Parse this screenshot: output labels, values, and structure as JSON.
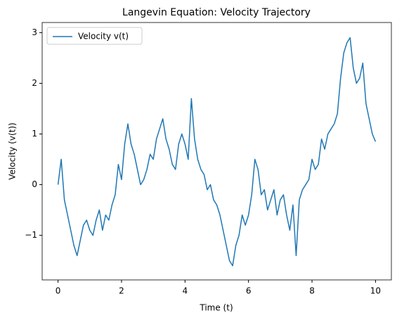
{
  "chart_data": {
    "type": "line",
    "title": "Langevin Equation: Velocity Trajectory",
    "xlabel": "Time (t)",
    "ylabel": "Velocity (v(t))",
    "x": [
      0,
      0.1,
      0.2,
      0.3,
      0.4,
      0.5,
      0.6,
      0.7,
      0.8,
      0.9,
      1,
      1.1,
      1.2,
      1.3,
      1.4,
      1.5,
      1.6,
      1.7,
      1.8,
      1.9,
      2,
      2.1,
      2.2,
      2.3,
      2.4,
      2.5,
      2.6,
      2.7,
      2.8,
      2.9,
      3,
      3.1,
      3.2,
      3.3,
      3.4,
      3.5,
      3.6,
      3.7,
      3.8,
      3.9,
      4,
      4.1,
      4.2,
      4.3,
      4.4,
      4.5,
      4.6,
      4.7,
      4.8,
      4.9,
      5,
      5.1,
      5.2,
      5.3,
      5.4,
      5.5,
      5.6,
      5.7,
      5.8,
      5.9,
      6,
      6.1,
      6.2,
      6.3,
      6.4,
      6.5,
      6.6,
      6.7,
      6.8,
      6.9,
      7,
      7.1,
      7.2,
      7.3,
      7.4,
      7.5,
      7.6,
      7.7,
      7.8,
      7.9,
      8,
      8.1,
      8.2,
      8.3,
      8.4,
      8.5,
      8.6,
      8.7,
      8.8,
      8.9,
      9,
      9.1,
      9.2,
      9.3,
      9.4,
      9.5,
      9.6,
      9.7,
      9.8,
      9.9,
      10
    ],
    "series": [
      {
        "name": "Velocity v(t)",
        "color": "#1f77b4",
        "values": [
          0,
          0.5,
          -0.3,
          -0.6,
          -0.9,
          -1.2,
          -1.4,
          -1.1,
          -0.8,
          -0.7,
          -0.9,
          -1.0,
          -0.7,
          -0.5,
          -0.9,
          -0.6,
          -0.7,
          -0.4,
          -0.2,
          0.4,
          0.1,
          0.8,
          1.2,
          0.8,
          0.6,
          0.3,
          0.0,
          0.1,
          0.3,
          0.6,
          0.5,
          0.9,
          1.1,
          1.3,
          0.9,
          0.7,
          0.4,
          0.3,
          0.8,
          1.0,
          0.8,
          0.5,
          1.7,
          0.9,
          0.5,
          0.3,
          0.2,
          -0.1,
          0.0,
          -0.3,
          -0.4,
          -0.6,
          -0.9,
          -1.2,
          -1.5,
          -1.6,
          -1.2,
          -1.0,
          -0.6,
          -0.8,
          -0.6,
          -0.2,
          0.5,
          0.3,
          -0.2,
          -0.1,
          -0.5,
          -0.3,
          -0.1,
          -0.6,
          -0.3,
          -0.2,
          -0.6,
          -0.9,
          -0.4,
          -1.4,
          -0.3,
          -0.1,
          0.0,
          0.1,
          0.5,
          0.3,
          0.4,
          0.9,
          0.7,
          1.0,
          1.1,
          1.2,
          1.4,
          2.1,
          2.6,
          2.8,
          2.9,
          2.3,
          2.0,
          2.1,
          2.4,
          1.6,
          1.3,
          1.0,
          0.85
        ]
      }
    ],
    "xlim": [
      -0.5,
      10.5
    ],
    "ylim": [
      -1.88,
      3.2
    ],
    "xticks": [
      0,
      2,
      4,
      6,
      8,
      10
    ],
    "yticks": [
      {
        "value": -1,
        "label": "−1"
      },
      0,
      1,
      2,
      3
    ],
    "legend": "upper left"
  }
}
